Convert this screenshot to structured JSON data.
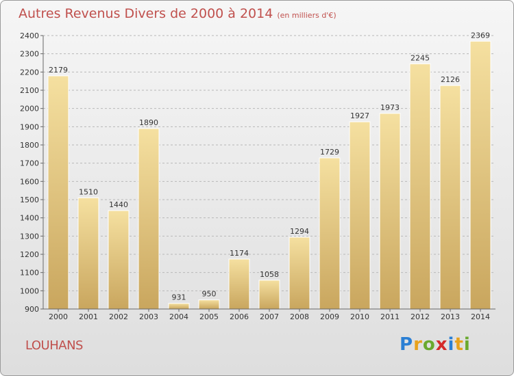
{
  "title": {
    "main": "Autres Revenus Divers de 2000 à 2014",
    "sub": "(en milliers d'€)"
  },
  "city": "LOUHANS",
  "logo": {
    "text": "Proxiti",
    "letters": [
      "P",
      "r",
      "o",
      "x",
      "i",
      "t",
      "i"
    ],
    "colors": [
      "#2a7fd4",
      "#e8a21c",
      "#6aa92f",
      "#d42a2a",
      "#2a7fd4",
      "#e8a21c",
      "#6aa92f"
    ]
  },
  "colors": {
    "title": "#c0504d",
    "bar_light": "#f5e0a0",
    "bar_dark": "#c9a65e",
    "grid": "#b8b8b8"
  },
  "chart_data": {
    "type": "bar",
    "title": "Autres Revenus Divers de 2000 à 2014",
    "subtitle": "(en milliers d'€)",
    "categories": [
      "2000",
      "2001",
      "2002",
      "2003",
      "2004",
      "2005",
      "2006",
      "2007",
      "2008",
      "2009",
      "2010",
      "2011",
      "2012",
      "2013",
      "2014"
    ],
    "values": [
      2179,
      1510,
      1440,
      1890,
      931,
      950,
      1174,
      1058,
      1294,
      1729,
      1927,
      1973,
      2245,
      2126,
      2369
    ],
    "ylim": [
      900,
      2400
    ],
    "yticks": [
      900,
      1000,
      1100,
      1200,
      1300,
      1400,
      1500,
      1600,
      1700,
      1800,
      1900,
      2000,
      2100,
      2200,
      2300,
      2400
    ],
    "grid": true,
    "xlabel": "",
    "ylabel": ""
  }
}
